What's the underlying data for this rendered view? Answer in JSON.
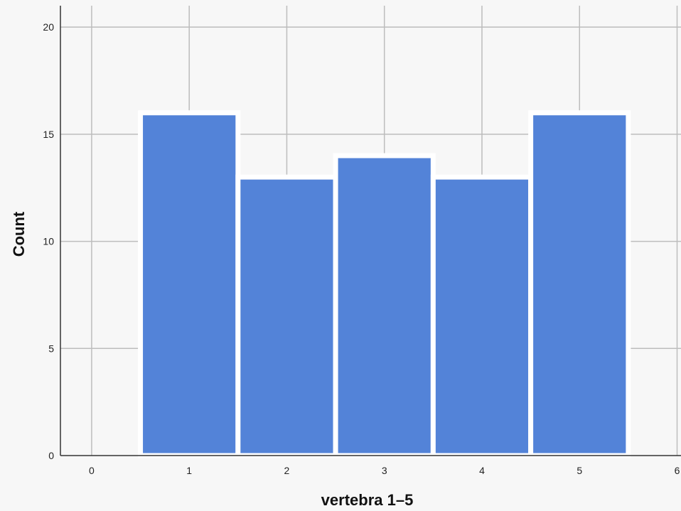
{
  "chart_data": {
    "type": "bar",
    "title": "",
    "xlabel": "vertebra 1–5",
    "ylabel": "Count",
    "x": [
      1,
      2,
      3,
      4,
      5
    ],
    "values": [
      16,
      13,
      14,
      13,
      16
    ],
    "bin_width": 1,
    "xlim": [
      -0.32,
      6.04
    ],
    "ylim": [
      0,
      21
    ],
    "x_ticks": [
      "0",
      "1",
      "2",
      "3",
      "4",
      "5",
      "6"
    ],
    "y_ticks": [
      "0",
      "5",
      "10",
      "15",
      "20"
    ],
    "grid": true,
    "legend": "none",
    "colors": {
      "bar": "#5383d8",
      "bar_edge": "#ffffff",
      "grid": "#bdbdbd",
      "axis": "#333333",
      "background": "#f7f7f7"
    }
  }
}
